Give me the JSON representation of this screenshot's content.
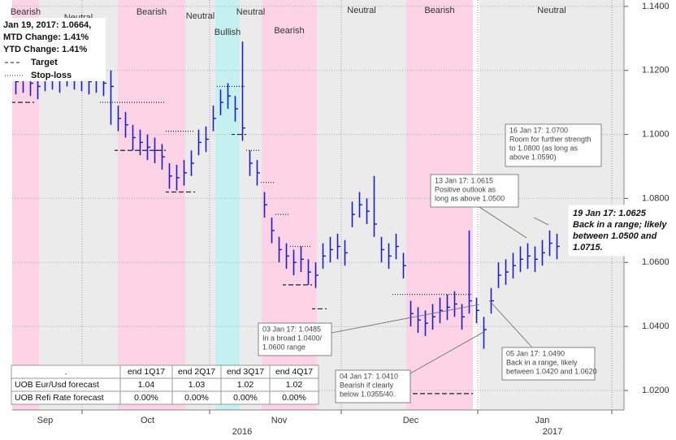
{
  "chart_data": {
    "type": "ohlc",
    "color": "#1c1cc8",
    "ylim": [
      1.0139,
      1.142
    ],
    "yticks": [
      {
        "value": 1.02,
        "label": "1.0200"
      },
      {
        "value": 1.04,
        "label": "1.0400"
      },
      {
        "value": 1.06,
        "label": "1.0600"
      },
      {
        "value": 1.08,
        "label": "1.0800"
      },
      {
        "value": 1.1,
        "label": "1.1000"
      },
      {
        "value": 1.12,
        "label": "1.1200"
      },
      {
        "value": 1.14,
        "label": "1.1400"
      }
    ],
    "grid": true,
    "categories": [
      null,
      null,
      null,
      null,
      "Sep",
      null,
      null,
      null,
      null,
      null,
      null,
      null,
      null,
      null,
      null,
      null,
      null,
      null,
      "Oct",
      null,
      null,
      null,
      null,
      null,
      null,
      null,
      null,
      null,
      null,
      null,
      null,
      null,
      null,
      null,
      null,
      null,
      "Nov",
      null,
      null,
      null,
      null,
      null,
      null,
      null,
      null,
      null,
      null,
      null,
      null,
      null,
      null,
      null,
      null,
      null,
      "Dec",
      null,
      null,
      null,
      null,
      null,
      null,
      null,
      null,
      null,
      null,
      null,
      null,
      null,
      null,
      null,
      null,
      null,
      "Jan",
      null,
      null,
      null,
      null,
      null,
      null,
      null,
      null,
      null,
      null,
      null
    ],
    "year_labels": [
      "2016",
      "2017"
    ],
    "high": [
      1.1205,
      1.121,
      1.12,
      1.119,
      1.1215,
      1.122,
      1.121,
      1.123,
      1.122,
      1.1215,
      1.1205,
      1.121,
      1.12,
      1.12,
      1.109,
      1.107,
      1.103,
      1.1015,
      1.1,
      1.099,
      1.097,
      1.091,
      1.0905,
      1.092,
      1.095,
      1.1015,
      1.1025,
      1.109,
      1.114,
      1.116,
      1.112,
      1.129,
      1.095,
      1.092,
      1.082,
      1.074,
      1.068,
      1.066,
      1.064,
      1.065,
      1.061,
      1.06,
      1.066,
      1.068,
      1.069,
      1.067,
      1.079,
      1.082,
      1.08,
      1.087,
      1.068,
      1.066,
      1.069,
      1.063,
      1.048,
      1.046,
      1.045,
      1.047,
      1.049,
      1.05,
      1.051,
      1.047,
      1.07,
      1.049,
      1.043,
      1.052,
      1.06,
      1.061,
      1.063,
      1.065,
      1.066,
      1.065,
      1.067,
      1.07,
      1.069,
      null,
      null,
      null,
      null,
      null,
      null,
      null,
      null,
      null
    ],
    "low": [
      1.1125,
      1.113,
      1.112,
      1.111,
      1.1135,
      1.114,
      1.113,
      1.115,
      1.114,
      1.1135,
      1.1125,
      1.113,
      1.112,
      1.103,
      1.101,
      1.099,
      1.095,
      1.0935,
      1.092,
      1.091,
      1.089,
      1.083,
      1.0825,
      1.084,
      1.087,
      1.0935,
      1.0945,
      1.101,
      1.106,
      1.108,
      1.104,
      1.098,
      1.087,
      1.084,
      1.074,
      1.066,
      1.06,
      1.058,
      1.056,
      1.057,
      1.053,
      1.052,
      1.058,
      1.06,
      1.061,
      1.059,
      1.071,
      1.074,
      1.072,
      1.068,
      1.06,
      1.058,
      1.061,
      1.055,
      1.04,
      1.038,
      1.037,
      1.039,
      1.041,
      1.042,
      1.043,
      1.039,
      1.044,
      1.041,
      1.033,
      1.044,
      1.052,
      1.053,
      1.055,
      1.057,
      1.058,
      1.057,
      1.059,
      1.062,
      1.061,
      null,
      null,
      null,
      null,
      null,
      null,
      null,
      null,
      null
    ],
    "close": [
      1.1165,
      1.117,
      1.116,
      1.115,
      1.1175,
      1.118,
      1.117,
      1.119,
      1.118,
      1.1175,
      1.1165,
      1.117,
      1.116,
      1.115,
      1.105,
      1.103,
      1.099,
      1.0975,
      1.096,
      1.095,
      1.093,
      1.087,
      1.0865,
      1.088,
      1.091,
      1.0975,
      1.0985,
      1.105,
      1.11,
      1.112,
      1.108,
      1.102,
      1.091,
      1.088,
      1.078,
      1.07,
      1.064,
      1.062,
      1.06,
      1.061,
      1.057,
      1.056,
      1.062,
      1.064,
      1.065,
      1.063,
      1.075,
      1.078,
      1.076,
      1.072,
      1.064,
      1.062,
      1.065,
      1.059,
      1.044,
      1.042,
      1.041,
      1.043,
      1.045,
      1.046,
      1.047,
      1.043,
      1.048,
      1.045,
      1.039,
      1.048,
      1.056,
      1.057,
      1.059,
      1.061,
      1.062,
      1.061,
      1.063,
      1.066,
      1.065,
      null,
      null,
      null,
      null,
      null,
      null,
      null,
      null,
      null
    ],
    "target": [
      1.11,
      1.11,
      1.11,
      null,
      null,
      null,
      null,
      null,
      null,
      null,
      null,
      null,
      null,
      null,
      1.095,
      1.095,
      1.095,
      1.095,
      1.095,
      1.095,
      1.095,
      1.082,
      1.082,
      1.082,
      1.082,
      null,
      null,
      null,
      null,
      null,
      1.1,
      1.1,
      null,
      null,
      null,
      null,
      null,
      1.053,
      1.053,
      1.053,
      1.053,
      1.0455,
      1.0455,
      null,
      null,
      null,
      null,
      null,
      null,
      null,
      null,
      null,
      null,
      null,
      1.019,
      1.019,
      1.019,
      1.019,
      1.019,
      1.019,
      1.019,
      1.019,
      1.019,
      null,
      null,
      null,
      null,
      null,
      null,
      null,
      null,
      null,
      null,
      null,
      null,
      null,
      null,
      null,
      null,
      null,
      null,
      null,
      null,
      null
    ],
    "stop_loss": [
      null,
      null,
      null,
      null,
      null,
      null,
      null,
      null,
      null,
      null,
      null,
      null,
      1.11,
      1.11,
      1.11,
      1.11,
      1.11,
      1.11,
      1.11,
      1.11,
      1.11,
      1.101,
      1.101,
      1.101,
      1.101,
      null,
      null,
      null,
      1.115,
      1.115,
      1.115,
      1.115,
      1.095,
      1.095,
      1.085,
      1.085,
      1.075,
      1.075,
      1.065,
      1.065,
      1.065,
      null,
      null,
      null,
      null,
      null,
      null,
      null,
      null,
      null,
      null,
      null,
      1.05,
      1.05,
      1.05,
      1.05,
      1.05,
      1.05,
      1.05,
      1.05,
      1.05,
      1.05,
      1.05,
      null,
      null,
      null,
      null,
      null,
      null,
      null,
      null,
      null,
      null,
      null,
      null,
      null,
      null,
      null,
      null,
      null,
      null,
      null,
      null,
      null
    ],
    "regimes": [
      {
        "label": "Bearish",
        "color": "#fdd3e6"
      },
      {
        "label": "Neutral",
        "color": "#ebebeb"
      },
      {
        "label": "Bearish",
        "color": "#fdd3e6"
      },
      {
        "label": "Neutral",
        "color": "#ebebeb"
      },
      {
        "label": "Bullish",
        "color": "#c4f0f0"
      },
      {
        "label": "Neutral",
        "color": "#ebebeb"
      },
      {
        "label": "Bearish",
        "color": "#fdd3e6"
      },
      {
        "label": "Neutral",
        "color": "#ebebeb"
      },
      {
        "label": "Bearish",
        "color": "#fdd3e6"
      },
      {
        "label": "Neutral",
        "color": "#ebebeb"
      }
    ],
    "info": [
      "Jan 19, 2017:  1.0664,",
      "MTD Change: 1.41%",
      "YTD Change:  1.41%"
    ],
    "legend": [
      "Target",
      "Stop-loss"
    ],
    "annotations": [
      [
        "16 Jan 17: 1.0700",
        "Room for further strength",
        "to 1.0800 (as long as",
        "above 1.0590)"
      ],
      [
        "13 Jan 17: 1.0615",
        "Positive outlook as",
        "long as above 1.0500"
      ],
      [
        "19 Jan 17: 1.0625",
        "Back in a range; likely",
        "between 1.0500 and",
        "1.0715."
      ],
      [
        "03 Jan 17: 1.0485",
        "In a broad 1.0400/",
        "1.0600 range"
      ],
      [
        "04 Jan 17: 1.0410",
        "Bearish if clearly",
        "below 1.0355/40."
      ],
      [
        "05 Jan 17: 1.0490",
        "Back in a range, likely",
        "between 1.0420 and 1.0620"
      ]
    ],
    "table": {
      "header": [
        ".",
        "end 1Q17",
        "end 2Q17",
        "end 3Q17",
        "end 4Q17"
      ],
      "rows": [
        [
          "UOB Eur/Usd forecast",
          "1.04",
          "1.03",
          "1.02",
          "1.02"
        ],
        [
          "UOB Refi Rate forecast",
          "0.00%",
          "0.00%",
          "0.00%",
          "0.00%"
        ]
      ]
    }
  }
}
